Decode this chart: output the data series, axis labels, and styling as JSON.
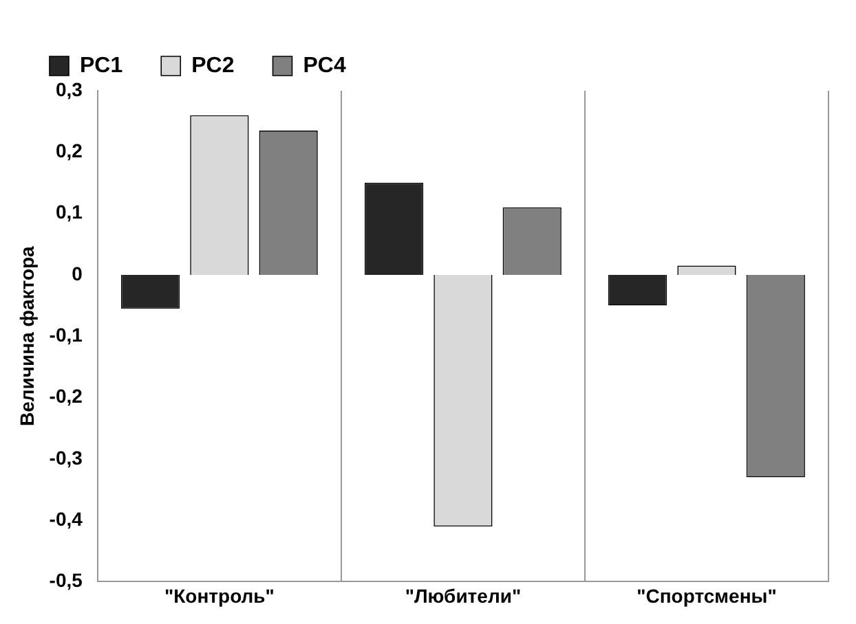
{
  "chart_data": {
    "type": "bar",
    "ylabel": "Величина фактора",
    "categories": [
      "\"Контроль\"",
      "\"Любители\"",
      "\"Спортсмены\""
    ],
    "series": [
      {
        "name": "PC1",
        "color": "#262626",
        "values": [
          -0.055,
          0.15,
          -0.05
        ]
      },
      {
        "name": "PC2",
        "color": "#d9d9d9",
        "values": [
          0.26,
          -0.41,
          0.015
        ]
      },
      {
        "name": "PC4",
        "color": "#808080",
        "values": [
          0.235,
          0.11,
          -0.33
        ]
      }
    ],
    "ylim": [
      -0.5,
      0.3
    ],
    "yticks": [
      {
        "value": -0.5,
        "label": "-0,5"
      },
      {
        "value": -0.4,
        "label": "-0,4"
      },
      {
        "value": -0.3,
        "label": "-0,3"
      },
      {
        "value": -0.2,
        "label": "-0,2"
      },
      {
        "value": -0.1,
        "label": "-0,1"
      },
      {
        "value": 0,
        "label": "0"
      },
      {
        "value": 0.1,
        "label": "0,1"
      },
      {
        "value": 0.2,
        "label": "0,2"
      },
      {
        "value": 0.3,
        "label": "0,3"
      }
    ],
    "grid": "x",
    "legend": "top left"
  }
}
